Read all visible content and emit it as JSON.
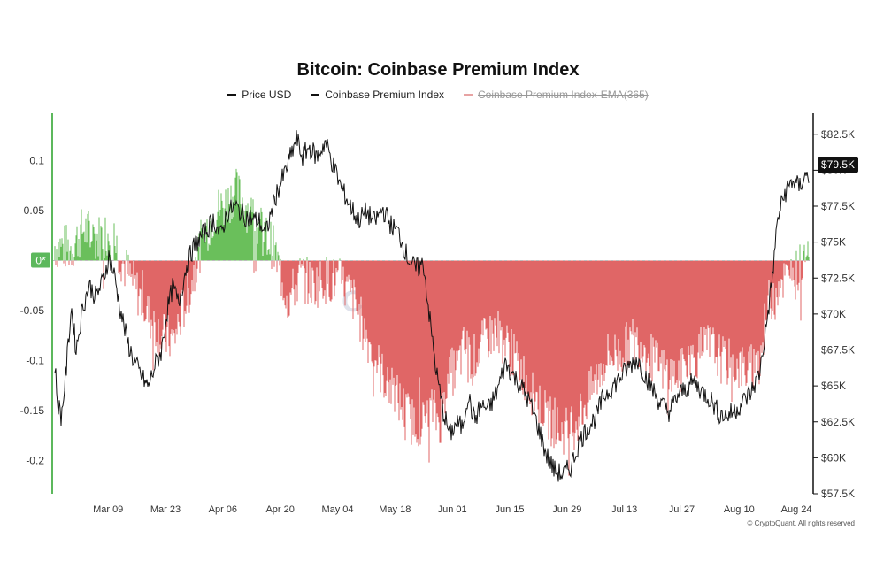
{
  "chart_data": {
    "type": "line",
    "title": "Bitcoin: Coinbase Premium Index",
    "legend_position": "top-center",
    "grid": false,
    "series": [
      {
        "name": "Price USD",
        "color": "#111111",
        "axis": "right",
        "style": "line"
      },
      {
        "name": "Coinbase Premium Index",
        "color": "#e06666",
        "positive_color": "#6abf5b",
        "axis": "left",
        "style": "bars"
      },
      {
        "name": "Coinbase Premium Index-EMA(365)",
        "color": "#e7a3a3",
        "axis": "left",
        "style": "line",
        "hidden": true
      }
    ],
    "x_ticks": [
      "Mar 09",
      "Mar 23",
      "Apr 06",
      "Apr 20",
      "May 04",
      "May 18",
      "Jun 01",
      "Jun 15",
      "Jun 29",
      "Jul 13",
      "Jul 27",
      "Aug 10",
      "Aug 24"
    ],
    "left_axis": {
      "ticks": [
        "0.1",
        "0.05",
        "0*",
        "-0.05",
        "-0.1",
        "-0.15",
        "-0.2"
      ],
      "ylim": [
        -0.235,
        0.15
      ]
    },
    "right_axis": {
      "ticks": [
        "$82.5K",
        "$80K",
        "$77.5K",
        "$75K",
        "$72.5K",
        "$70K",
        "$67.5K",
        "$65K",
        "$62.5K",
        "$60K",
        "$57.5K"
      ],
      "ylim": [
        57500,
        82500
      ]
    },
    "current_price_label": "$79.5K",
    "price_keyframes": [
      [
        0,
        66500
      ],
      [
        0.3,
        64000
      ],
      [
        0.8,
        62800
      ],
      [
        1.4,
        66200
      ],
      [
        2.0,
        70500
      ],
      [
        2.6,
        67500
      ],
      [
        3.4,
        70500
      ],
      [
        4.2,
        72000
      ],
      [
        5.0,
        71200
      ],
      [
        5.8,
        72200
      ],
      [
        6.6,
        74000
      ],
      [
        7.3,
        72600
      ],
      [
        8.0,
        70300
      ],
      [
        8.8,
        68200
      ],
      [
        9.6,
        66800
      ],
      [
        10.5,
        65700
      ],
      [
        11.4,
        64900
      ],
      [
        12.2,
        66400
      ],
      [
        13.0,
        67400
      ],
      [
        13.7,
        70200
      ],
      [
        14.4,
        71900
      ],
      [
        15.1,
        70700
      ],
      [
        16.0,
        73200
      ],
      [
        16.8,
        74500
      ],
      [
        17.6,
        75200
      ],
      [
        18.5,
        75800
      ],
      [
        19.4,
        76600
      ],
      [
        20.2,
        75400
      ],
      [
        21.0,
        77000
      ],
      [
        22.0,
        77500
      ],
      [
        23.0,
        76900
      ],
      [
        24.0,
        76600
      ],
      [
        25.0,
        76400
      ],
      [
        25.7,
        75500
      ],
      [
        26.3,
        76800
      ],
      [
        27.0,
        78300
      ],
      [
        28.0,
        79700
      ],
      [
        28.8,
        81000
      ],
      [
        29.5,
        82200
      ],
      [
        30.2,
        80900
      ],
      [
        31.0,
        81600
      ],
      [
        32.0,
        80900
      ],
      [
        33.0,
        82000
      ],
      [
        34.0,
        80300
      ],
      [
        35.0,
        78700
      ],
      [
        36.0,
        77600
      ],
      [
        37.0,
        76500
      ],
      [
        38.0,
        77100
      ],
      [
        39.0,
        76400
      ],
      [
        40.0,
        77300
      ],
      [
        41.0,
        76200
      ],
      [
        42.0,
        75600
      ],
      [
        43.0,
        74000
      ],
      [
        44.0,
        73100
      ],
      [
        45.0,
        73500
      ],
      [
        45.8,
        69400
      ],
      [
        46.6,
        65800
      ],
      [
        47.4,
        63200
      ],
      [
        48.2,
        61600
      ],
      [
        49.0,
        62400
      ],
      [
        49.7,
        62100
      ],
      [
        50.4,
        64400
      ],
      [
        51.2,
        62600
      ],
      [
        52.0,
        63600
      ],
      [
        53.0,
        63400
      ],
      [
        54.0,
        64700
      ],
      [
        55.0,
        66600
      ],
      [
        56.0,
        65700
      ],
      [
        57.0,
        64900
      ],
      [
        58.0,
        63800
      ],
      [
        59.0,
        62100
      ],
      [
        60.0,
        60200
      ],
      [
        61.0,
        59100
      ],
      [
        62.0,
        58800
      ],
      [
        63.0,
        59400
      ],
      [
        64.0,
        61100
      ],
      [
        65.0,
        62100
      ],
      [
        66.0,
        62800
      ],
      [
        67.0,
        64300
      ],
      [
        68.0,
        64900
      ],
      [
        69.0,
        65600
      ],
      [
        70.0,
        66300
      ],
      [
        71.0,
        66900
      ],
      [
        72.0,
        65800
      ],
      [
        73.0,
        64700
      ],
      [
        74.0,
        63700
      ],
      [
        75.0,
        63200
      ],
      [
        76.0,
        64300
      ],
      [
        77.0,
        64800
      ],
      [
        78.0,
        65300
      ],
      [
        79.0,
        64600
      ],
      [
        80.0,
        64100
      ],
      [
        81.0,
        63100
      ],
      [
        82.0,
        62900
      ],
      [
        83.0,
        63300
      ],
      [
        84.0,
        63900
      ],
      [
        85.0,
        64600
      ],
      [
        86.0,
        65900
      ],
      [
        86.8,
        69100
      ],
      [
        87.5,
        72200
      ],
      [
        88.2,
        76600
      ],
      [
        89.0,
        78300
      ],
      [
        90.0,
        79300
      ],
      [
        90.8,
        78800
      ],
      [
        91.5,
        79600
      ],
      [
        92.0,
        79500
      ]
    ],
    "premium_keyframes": [
      [
        0,
        0.015
      ],
      [
        2.0,
        0.012
      ],
      [
        3.5,
        0.032
      ],
      [
        5.0,
        0.022
      ],
      [
        6.5,
        0.028
      ],
      [
        7.5,
        0.015
      ],
      [
        8.5,
        -0.006
      ],
      [
        10.0,
        -0.03
      ],
      [
        11.5,
        -0.055
      ],
      [
        13.0,
        -0.075
      ],
      [
        14.5,
        -0.08
      ],
      [
        15.5,
        -0.052
      ],
      [
        16.5,
        -0.028
      ],
      [
        18.0,
        0.022
      ],
      [
        19.5,
        0.048
      ],
      [
        21.0,
        0.058
      ],
      [
        22.0,
        0.07
      ],
      [
        23.5,
        0.052
      ],
      [
        25.0,
        0.032
      ],
      [
        26.5,
        0.016
      ],
      [
        27.5,
        -0.012
      ],
      [
        28.5,
        -0.04
      ],
      [
        30.0,
        -0.015
      ],
      [
        31.5,
        -0.025
      ],
      [
        33.0,
        -0.018
      ],
      [
        35.0,
        -0.022
      ],
      [
        36.5,
        -0.04
      ],
      [
        38.0,
        -0.075
      ],
      [
        40.0,
        -0.115
      ],
      [
        42.0,
        -0.14
      ],
      [
        43.5,
        -0.16
      ],
      [
        45.0,
        -0.162
      ],
      [
        46.0,
        -0.148
      ],
      [
        47.0,
        -0.162
      ],
      [
        48.0,
        -0.112
      ],
      [
        49.0,
        -0.11
      ],
      [
        50.0,
        -0.085
      ],
      [
        51.0,
        -0.1
      ],
      [
        52.0,
        -0.085
      ],
      [
        53.0,
        -0.075
      ],
      [
        54.0,
        -0.07
      ],
      [
        55.5,
        -0.09
      ],
      [
        57.0,
        -0.11
      ],
      [
        58.5,
        -0.135
      ],
      [
        60.0,
        -0.155
      ],
      [
        61.5,
        -0.17
      ],
      [
        63.0,
        -0.17
      ],
      [
        64.5,
        -0.148
      ],
      [
        66.0,
        -0.12
      ],
      [
        67.5,
        -0.095
      ],
      [
        69.0,
        -0.092
      ],
      [
        70.5,
        -0.08
      ],
      [
        72.0,
        -0.085
      ],
      [
        73.0,
        -0.1
      ],
      [
        74.5,
        -0.112
      ],
      [
        76.0,
        -0.115
      ],
      [
        77.5,
        -0.1
      ],
      [
        79.0,
        -0.09
      ],
      [
        80.0,
        -0.085
      ],
      [
        81.5,
        -0.1
      ],
      [
        83.0,
        -0.105
      ],
      [
        84.5,
        -0.11
      ],
      [
        86.0,
        -0.1
      ],
      [
        87.0,
        -0.045
      ],
      [
        88.5,
        -0.018
      ],
      [
        90.0,
        -0.02
      ],
      [
        91.0,
        -0.005
      ],
      [
        92.0,
        0.02
      ]
    ]
  },
  "copyright": "© CryptoQuant. All rights reserved",
  "watermark": "CryptoQuant"
}
